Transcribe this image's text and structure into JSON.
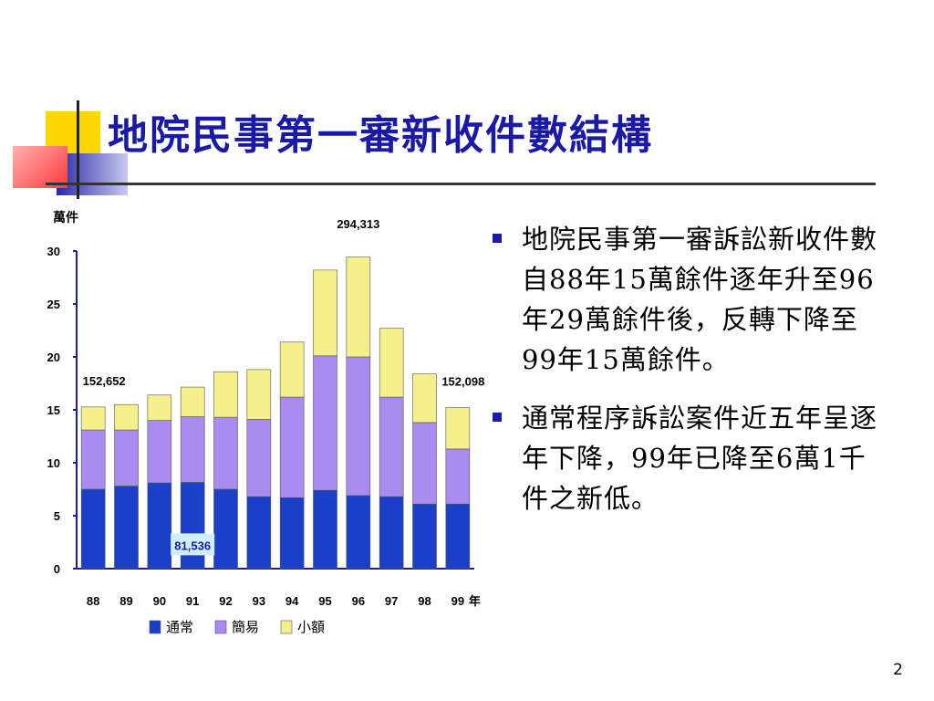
{
  "slide": {
    "title": "地院民事第一審新收件數結構",
    "page_number": "2",
    "bullets": [
      "地院民事第一審訴訟新收件數自88年15萬餘件逐年升至96年29萬餘件後，反轉下降至99年15萬餘件。",
      "通常程序訴訟案件近五年呈逐年下降，99年已降至6萬1千件之新低。"
    ]
  },
  "colors": {
    "title": "#1a1aa6",
    "bullet": "#1a1aa6",
    "series_regular": "#1a3fc8",
    "series_simple": "#a98cf0",
    "series_small": "#f4f08c"
  },
  "chart_data": {
    "type": "bar",
    "stacked": true,
    "ylabel": "萬件",
    "x_unit": "年",
    "ylim": [
      0,
      30
    ],
    "yticks": [
      0,
      5,
      10,
      15,
      20,
      25,
      30
    ],
    "categories": [
      "88",
      "89",
      "90",
      "91",
      "92",
      "93",
      "94",
      "95",
      "96",
      "97",
      "98",
      "99"
    ],
    "series": [
      {
        "name": "通常",
        "color": "#1a3fc8",
        "values": [
          7.5,
          7.8,
          8.1,
          8.15,
          7.5,
          6.8,
          6.7,
          7.4,
          6.9,
          6.8,
          6.1,
          6.1
        ]
      },
      {
        "name": "簡易",
        "color": "#a98cf0",
        "values": [
          5.6,
          5.3,
          5.9,
          6.2,
          6.8,
          7.3,
          9.5,
          12.7,
          13.1,
          9.4,
          7.7,
          5.2
        ]
      },
      {
        "name": "小額",
        "color": "#f4f08c",
        "values": [
          2.17,
          2.4,
          2.4,
          2.8,
          4.3,
          4.7,
          5.2,
          8.1,
          9.43,
          6.5,
          4.6,
          3.91
        ]
      }
    ],
    "annotations": [
      {
        "text": "152,652",
        "category": "88"
      },
      {
        "text": "81,536",
        "category": "91",
        "series": "通常"
      },
      {
        "text": "294,313",
        "category": "96"
      },
      {
        "text": "152,098",
        "category": "99"
      }
    ],
    "legend": "bottom"
  }
}
